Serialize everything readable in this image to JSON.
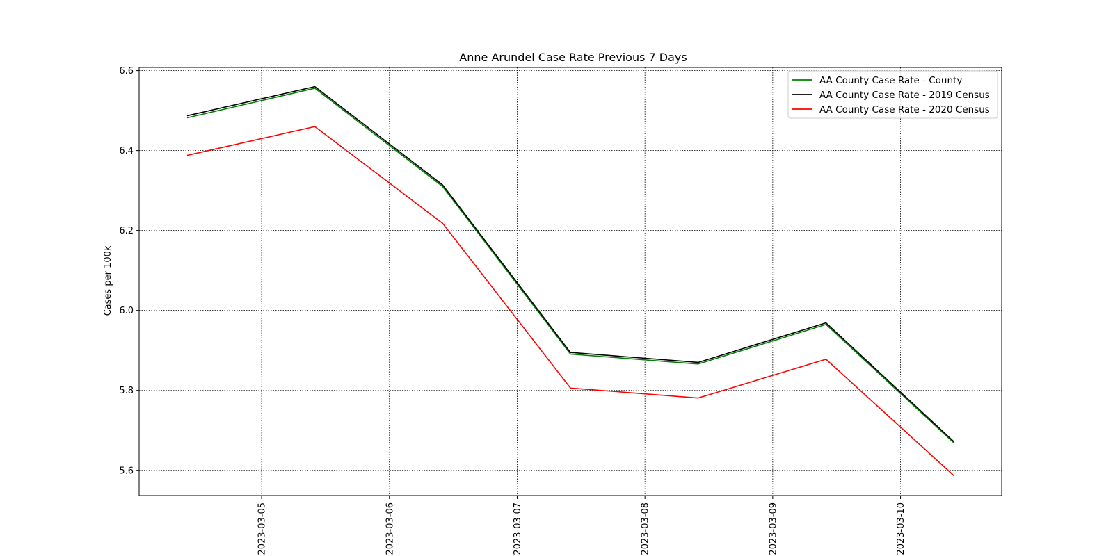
{
  "chart_data": {
    "type": "line",
    "title": "Anne Arundel Case Rate Previous 7 Days",
    "xlabel": "",
    "ylabel": "Cases per 100k",
    "x": [
      "2023-03-04 10:00",
      "2023-03-05 10:00",
      "2023-03-06 10:00",
      "2023-03-07 10:00",
      "2023-03-08 10:00",
      "2023-03-09 10:00",
      "2023-03-10 10:00"
    ],
    "xticks": [
      "2023-03-05",
      "2023-03-06",
      "2023-03-07",
      "2023-03-08",
      "2023-03-09",
      "2023-03-10"
    ],
    "xlim": [
      "2023-03-04 01:00",
      "2023-03-10 19:00"
    ],
    "ylim": [
      5.537,
      6.608
    ],
    "yticks": [
      "5.6",
      "5.8",
      "6.0",
      "6.2",
      "6.4",
      "6.6"
    ],
    "grid": true,
    "legend_position": "top-right",
    "series": [
      {
        "name": "AA County Case Rate - County",
        "color": "#008000",
        "values": [
          6.482,
          6.556,
          6.31,
          5.891,
          5.866,
          5.965,
          5.669
        ]
      },
      {
        "name": "AA County Case Rate - 2019 Census",
        "color": "#000000",
        "values": [
          6.487,
          6.56,
          6.314,
          5.895,
          5.87,
          5.969,
          5.672
        ]
      },
      {
        "name": "AA County Case Rate - 2020 Census",
        "color": "#ff0000",
        "values": [
          6.388,
          6.46,
          6.218,
          5.806,
          5.781,
          5.878,
          5.587
        ]
      }
    ]
  }
}
